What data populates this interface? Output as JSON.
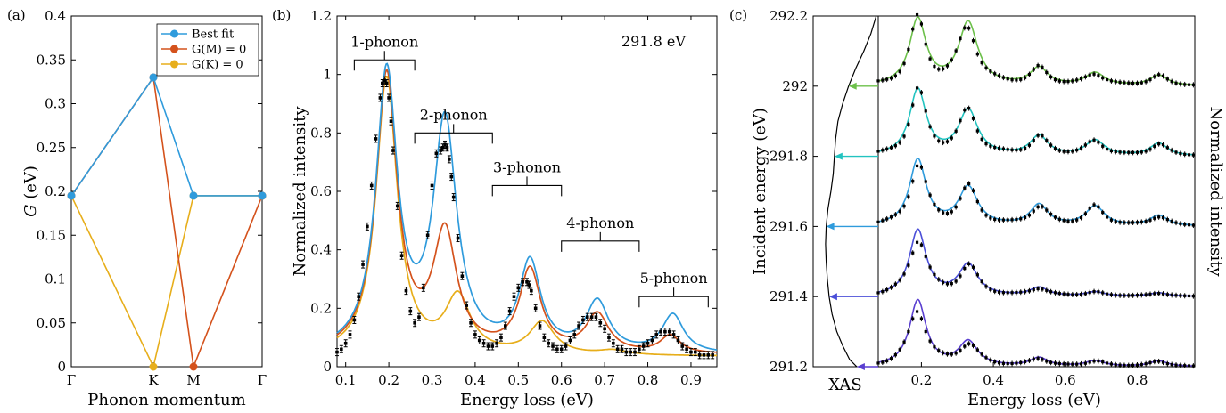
{
  "colors": {
    "best_fit": "#2f9bdc",
    "g_m0": "#d4521c",
    "g_k0": "#e7ae1b",
    "data": "#000000",
    "xas": "#000000",
    "stack": [
      "#5a3fd0",
      "#4b4fd8",
      "#2f9bdc",
      "#22c3c0",
      "#6cc04a"
    ]
  },
  "chart_data": [
    {
      "panel": "(a)",
      "type": "line",
      "xlabel": "Phonon momentum",
      "ylabel": "G (eV)",
      "categories": [
        "Γ",
        "K",
        "M",
        "Γ"
      ],
      "ylim": [
        0,
        0.4
      ],
      "yticks": [
        "0",
        "0.05",
        "0.1",
        "0.15",
        "0.2",
        "0.25",
        "0.3",
        "0.35",
        "0.4"
      ],
      "legend_position": "top-right",
      "series": [
        {
          "name": "Best fit",
          "color_key": "best_fit",
          "values": [
            0.195,
            0.33,
            0.195,
            0.195
          ]
        },
        {
          "name": "G(M) = 0",
          "color_key": "g_m0",
          "values": [
            0.195,
            0.33,
            0,
            0.195
          ]
        },
        {
          "name": "G(K) = 0",
          "color_key": "g_k0",
          "values": [
            0.195,
            0,
            0.195,
            0.195
          ]
        }
      ]
    },
    {
      "panel": "(b)",
      "type": "line",
      "xlabel": "Energy loss (eV)",
      "ylabel": "Normalized intensity",
      "xlim": [
        0.08,
        0.96
      ],
      "ylim": [
        0,
        1.2
      ],
      "xticks": [
        "0.1",
        "0.2",
        "0.3",
        "0.4",
        "0.5",
        "0.6",
        "0.7",
        "0.8",
        "0.9"
      ],
      "yticks": [
        "0",
        "0.2",
        "0.4",
        "0.6",
        "0.8",
        "1",
        "1.2"
      ],
      "energy_label": "291.8 eV",
      "phonon_groups": [
        {
          "label": "1-phonon",
          "x0": 0.12,
          "x1": 0.26,
          "y": 1.05
        },
        {
          "label": "2-phonon",
          "x0": 0.26,
          "x1": 0.44,
          "y": 0.8
        },
        {
          "label": "3-phonon",
          "x0": 0.44,
          "x1": 0.6,
          "y": 0.62
        },
        {
          "label": "4-phonon",
          "x0": 0.6,
          "x1": 0.78,
          "y": 0.43
        },
        {
          "label": "5-phonon",
          "x0": 0.78,
          "x1": 0.94,
          "y": 0.24
        }
      ],
      "data_points": {
        "x": [
          0.08,
          0.09,
          0.1,
          0.11,
          0.12,
          0.13,
          0.14,
          0.15,
          0.16,
          0.17,
          0.18,
          0.185,
          0.19,
          0.195,
          0.2,
          0.205,
          0.21,
          0.22,
          0.23,
          0.24,
          0.25,
          0.26,
          0.27,
          0.28,
          0.29,
          0.3,
          0.31,
          0.32,
          0.325,
          0.33,
          0.335,
          0.34,
          0.345,
          0.35,
          0.36,
          0.37,
          0.38,
          0.39,
          0.4,
          0.41,
          0.42,
          0.43,
          0.44,
          0.45,
          0.46,
          0.47,
          0.48,
          0.49,
          0.5,
          0.51,
          0.52,
          0.525,
          0.53,
          0.54,
          0.55,
          0.56,
          0.57,
          0.58,
          0.59,
          0.6,
          0.61,
          0.62,
          0.63,
          0.64,
          0.65,
          0.66,
          0.67,
          0.68,
          0.69,
          0.7,
          0.71,
          0.72,
          0.73,
          0.74,
          0.75,
          0.76,
          0.77,
          0.78,
          0.79,
          0.8,
          0.81,
          0.82,
          0.83,
          0.84,
          0.85,
          0.86,
          0.87,
          0.88,
          0.89,
          0.9,
          0.91,
          0.92,
          0.93,
          0.94,
          0.95
        ],
        "y": [
          0.05,
          0.06,
          0.08,
          0.11,
          0.16,
          0.24,
          0.35,
          0.48,
          0.62,
          0.78,
          0.92,
          0.97,
          0.98,
          0.97,
          0.92,
          0.84,
          0.74,
          0.55,
          0.38,
          0.26,
          0.19,
          0.15,
          0.17,
          0.27,
          0.45,
          0.62,
          0.73,
          0.74,
          0.75,
          0.76,
          0.75,
          0.71,
          0.65,
          0.58,
          0.44,
          0.31,
          0.21,
          0.15,
          0.11,
          0.09,
          0.08,
          0.07,
          0.07,
          0.08,
          0.1,
          0.14,
          0.19,
          0.24,
          0.27,
          0.29,
          0.29,
          0.28,
          0.26,
          0.2,
          0.14,
          0.1,
          0.08,
          0.07,
          0.06,
          0.06,
          0.07,
          0.09,
          0.11,
          0.14,
          0.16,
          0.17,
          0.17,
          0.17,
          0.15,
          0.13,
          0.1,
          0.08,
          0.06,
          0.06,
          0.05,
          0.05,
          0.05,
          0.06,
          0.07,
          0.08,
          0.09,
          0.11,
          0.12,
          0.12,
          0.12,
          0.11,
          0.09,
          0.07,
          0.06,
          0.05,
          0.05,
          0.04,
          0.04,
          0.04,
          0.04
        ]
      },
      "series": [
        {
          "name": "Best fit",
          "color_key": "best_fit"
        },
        {
          "name": "G(M) = 0",
          "color_key": "g_m0"
        },
        {
          "name": "G(K) = 0",
          "color_key": "g_k0"
        }
      ]
    },
    {
      "panel": "(c)",
      "type": "line",
      "xlabel": "Energy loss (eV)",
      "ylabel_left": "Incident energy (eV)",
      "ylabel_right": "Normalized intensity",
      "xas_label": "XAS",
      "xlim": [
        0.08,
        0.96
      ],
      "ylim": [
        291.2,
        292.2
      ],
      "xticks": [
        "0.2",
        "0.4",
        "0.6",
        "0.8"
      ],
      "yticks": [
        "291.2",
        "291.4",
        "291.6",
        "291.8",
        "292",
        "292.2"
      ],
      "spectra_incident_energies": [
        291.2,
        291.4,
        291.6,
        291.8,
        292.0
      ],
      "xas_curve": {
        "energy": [
          291.2,
          291.22,
          291.26,
          291.3,
          291.35,
          291.4,
          291.45,
          291.5,
          291.55,
          291.6,
          291.65,
          291.7,
          291.75,
          291.8,
          291.85,
          291.9,
          291.95,
          292.0,
          292.05,
          292.1,
          292.15,
          292.2
        ],
        "intensity": [
          0.62,
          0.5,
          0.38,
          0.28,
          0.2,
          0.15,
          0.12,
          0.1,
          0.09,
          0.1,
          0.13,
          0.18,
          0.22,
          0.24,
          0.26,
          0.3,
          0.38,
          0.48,
          0.6,
          0.74,
          0.86,
          0.95
        ]
      }
    }
  ]
}
